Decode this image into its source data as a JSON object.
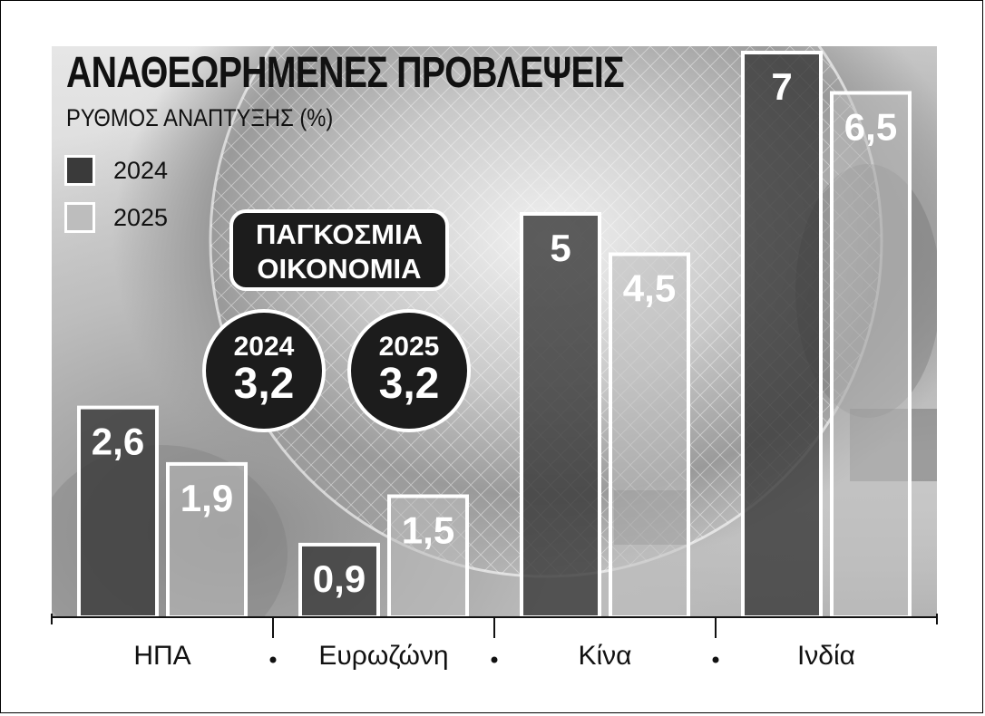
{
  "title": "ΑΝΑΘΕΩΡΗΜΕΝΕΣ ΠΡΟΒΛΕΨΕΙΣ",
  "subtitle": "ΡΥΘΜΟΣ ΑΝΑΠΤΥΞΗΣ (%)",
  "legend": [
    {
      "label": "2024",
      "color": "#3a3a3a"
    },
    {
      "label": "2025",
      "color": "#bdbdbd"
    }
  ],
  "callout": {
    "line1": "ΠΑΓΚΟΣΜΙΑ",
    "line2": "ΟΙΚΟΝΟΜΙΑ"
  },
  "world": [
    {
      "year": "2024",
      "value": "3,2"
    },
    {
      "year": "2025",
      "value": "3,2"
    }
  ],
  "chart_data": {
    "type": "bar",
    "title": "ΑΝΑΘΕΩΡΗΜΕΝΕΣ ΠΡΟΒΛΕΨΕΙΣ",
    "subtitle": "ΡΥΘΜΟΣ ΑΝΑΠΤΥΞΗΣ (%)",
    "categories": [
      "ΗΠΑ",
      "Ευρωζώνη",
      "Κίνα",
      "Ινδία"
    ],
    "series": [
      {
        "name": "2024",
        "values": [
          2.6,
          0.9,
          5,
          7
        ],
        "labels": [
          "2,6",
          "0,9",
          "5",
          "7"
        ],
        "color": "#3a3a3a"
      },
      {
        "name": "2025",
        "values": [
          1.9,
          1.5,
          4.5,
          6.5
        ],
        "labels": [
          "1,9",
          "1,5",
          "4,5",
          "6,5"
        ],
        "color": "#bdbdbd"
      }
    ],
    "ylim": [
      0,
      7
    ],
    "grid": false,
    "legend_position": "top-left"
  }
}
